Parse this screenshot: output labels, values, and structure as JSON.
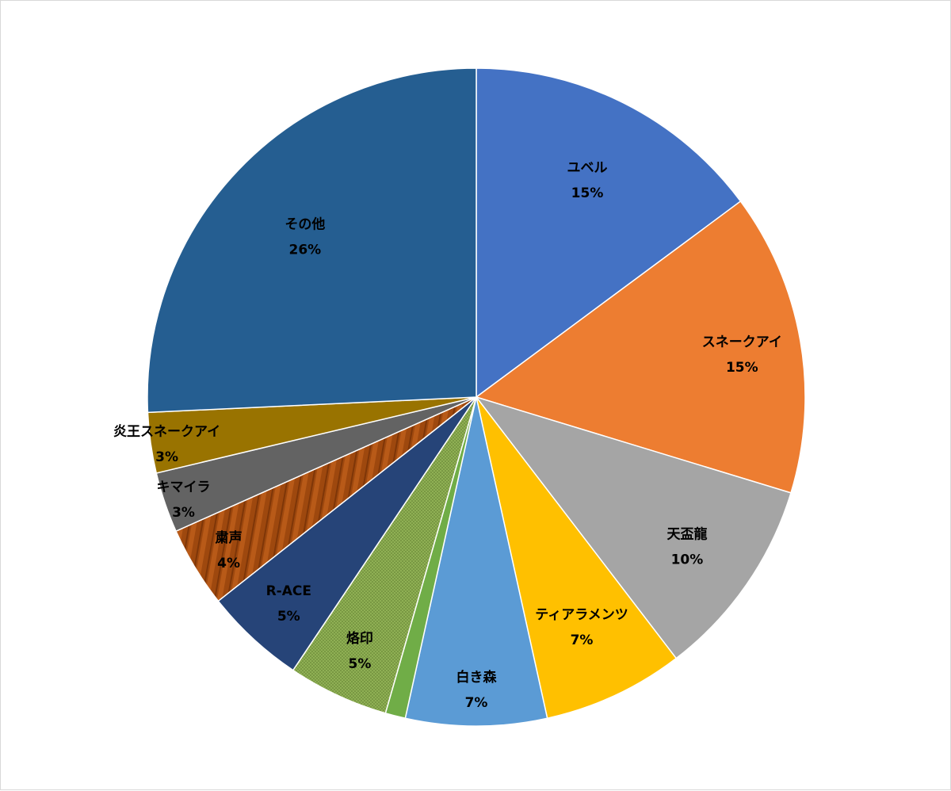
{
  "chart_data": {
    "type": "pie",
    "title": "",
    "legend": "none",
    "data_labels": "category and percentage",
    "slices": [
      {
        "label": "ユベル",
        "percent_label": "15%",
        "value": 15,
        "color": "#4472C4",
        "pattern": "none"
      },
      {
        "label": "スネークアイ",
        "percent_label": "15%",
        "value": 15,
        "color": "#ED7D31",
        "pattern": "none"
      },
      {
        "label": "天盃龍",
        "percent_label": "10%",
        "value": 10,
        "color": "#A5A5A5",
        "pattern": "none"
      },
      {
        "label": "ティアラメンツ",
        "percent_label": "7%",
        "value": 7,
        "color": "#FFC000",
        "pattern": "none"
      },
      {
        "label": "白き森",
        "percent_label": "7%",
        "value": 7,
        "color": "#5B9BD5",
        "pattern": "none"
      },
      {
        "label": "",
        "percent_label": "",
        "value": 1,
        "color": "#70AD47",
        "pattern": "none"
      },
      {
        "label": "烙印",
        "percent_label": "5%",
        "value": 5,
        "color": "#8FB054",
        "pattern": "dots"
      },
      {
        "label": "R-ACE",
        "percent_label": "5%",
        "value": 5,
        "color": "#264478",
        "pattern": "none"
      },
      {
        "label": "粛声",
        "percent_label": "4%",
        "value": 4,
        "color": "#9E480E",
        "pattern": "stripes"
      },
      {
        "label": "キマイラ",
        "percent_label": "3%",
        "value": 3,
        "color": "#636363",
        "pattern": "none"
      },
      {
        "label": "炎王スネークアイ",
        "percent_label": "3%",
        "value": 3,
        "color": "#997300",
        "pattern": "none"
      },
      {
        "label": "その他",
        "percent_label": "26%",
        "value": 26,
        "color": "#255E91",
        "pattern": "none"
      }
    ]
  }
}
